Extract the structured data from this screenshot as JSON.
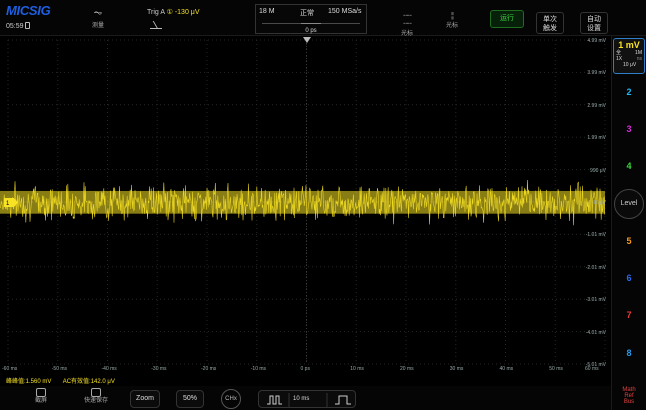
{
  "top": {
    "logo": "MICSIG",
    "clock": "05:59",
    "measure_label": "测量",
    "trigger_label": "Trig A",
    "trigger_channel": "①",
    "trigger_level": "-130 μV",
    "memory": "18 M",
    "mode": "正常",
    "sample_rate": "150 MSa/s",
    "time_offset": "0 ps",
    "cursor_label_1": "光标",
    "cursor_label_2": "光标",
    "run_label": "运行",
    "single_label_1": "单次",
    "single_label_2": "触发",
    "auto_label_1": "自动",
    "auto_label_2": "设置"
  },
  "channels": {
    "ch1": {
      "scale": "1 mV",
      "coupling": "全",
      "impedance": "1M",
      "probe": "1X",
      "offset": "10 μV",
      "unit": "ns"
    },
    "ch2": "2",
    "ch3": "3",
    "ch4": "4",
    "level": "Level",
    "ch5": "5",
    "ch6": "6",
    "ch7": "7",
    "ch8": "8",
    "math_label": "Math",
    "ref_label": "Ref",
    "bus_label": "Bus",
    "colors": {
      "ch1": "#f7e224",
      "ch2": "#1fb8f5",
      "ch3": "#d82bd8",
      "ch4": "#39d839",
      "ch5": "#f59a1f",
      "ch6": "#2a6af0",
      "ch7": "#f03a3a",
      "ch8": "#2a9af0"
    }
  },
  "axes": {
    "v_labels": [
      "4.99 mV",
      "3.99 mV",
      "2.99 mV",
      "1.99 mV",
      "990 μV",
      "-10 μV",
      "-1.01 mV",
      "-2.01 mV",
      "-3.01 mV",
      "-4.01 mV",
      "-5.01 mV"
    ],
    "h_labels": [
      "-60 ms",
      "-50 ms",
      "-40 ms",
      "-30 ms",
      "-20 ms",
      "-10 ms",
      "0 ps",
      "10 ms",
      "20 ms",
      "30 ms",
      "40 ms",
      "50 ms",
      "60 ms"
    ]
  },
  "measure": {
    "peak_to_peak": "峰峰值:1.560 mV",
    "ac_rms": "AC有效值:142.0 μV"
  },
  "bottom": {
    "screenshot_label": "截屏",
    "quicksave_label": "快速保存",
    "zoom_label": "Zoom",
    "percent_label": "50%",
    "chx_label": "CHx",
    "timebase_label": "10 ms"
  },
  "trace": {
    "color": "#f7e224",
    "mean_mV": -0.01,
    "peak_to_peak_mV": 1.56
  }
}
